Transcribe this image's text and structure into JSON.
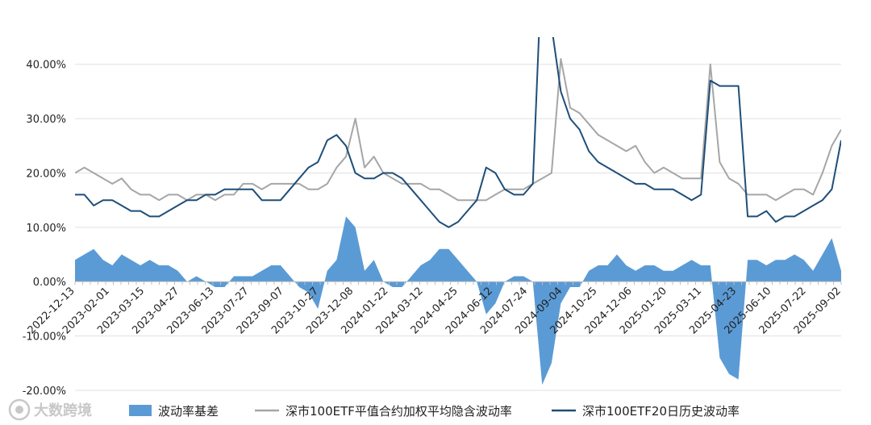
{
  "chart_data": {
    "type": "line",
    "title": "",
    "xlabel": "",
    "ylabel": "",
    "ylim": [
      -0.2,
      0.45
    ],
    "y_ticks": [
      -0.2,
      -0.1,
      0.0,
      0.1,
      0.2,
      0.3,
      0.4
    ],
    "y_tick_labels": [
      "-20.00%",
      "-10.00%",
      "0.00%",
      "10.00%",
      "20.00%",
      "30.00%",
      "40.00%"
    ],
    "x_tick_labels": [
      "2022-12-13",
      "2023-02-01",
      "2023-03-15",
      "2023-04-27",
      "2023-06-13",
      "2023-07-27",
      "2023-09-07",
      "2023-10-27",
      "2023-12-08",
      "2024-01-22",
      "2024-03-12",
      "2024-04-25",
      "2024-06-12",
      "2024-07-24",
      "2024-09-04",
      "2024-10-25",
      "2024-12-06",
      "2025-01-20",
      "2025-03-11",
      "2025-04-23",
      "2025-06-10",
      "2025-07-22",
      "2025-09-02"
    ],
    "grid": "horizontal",
    "legend_position": "bottom",
    "colors": {
      "basis": "#5b9bd5",
      "implied": "#a6a6a6",
      "historical": "#1f4e79",
      "grid": "#e0e0e0",
      "axis": "#bfbfbf"
    },
    "series": [
      {
        "name": "深市100ETF平值合约加权平均隐含波动率",
        "kind": "line",
        "values": [
          0.2,
          0.21,
          0.2,
          0.19,
          0.18,
          0.19,
          0.17,
          0.16,
          0.16,
          0.15,
          0.16,
          0.16,
          0.15,
          0.16,
          0.16,
          0.15,
          0.16,
          0.16,
          0.18,
          0.18,
          0.17,
          0.18,
          0.18,
          0.18,
          0.18,
          0.17,
          0.17,
          0.18,
          0.21,
          0.23,
          0.3,
          0.21,
          0.23,
          0.2,
          0.19,
          0.18,
          0.18,
          0.18,
          0.17,
          0.17,
          0.16,
          0.15,
          0.15,
          0.15,
          0.15,
          0.16,
          0.17,
          0.17,
          0.17,
          0.18,
          0.19,
          0.2,
          0.41,
          0.32,
          0.31,
          0.29,
          0.27,
          0.26,
          0.25,
          0.24,
          0.25,
          0.22,
          0.2,
          0.21,
          0.2,
          0.19,
          0.19,
          0.19,
          0.4,
          0.22,
          0.19,
          0.18,
          0.16,
          0.16,
          0.16,
          0.15,
          0.16,
          0.17,
          0.17,
          0.16,
          0.2,
          0.25,
          0.28
        ]
      },
      {
        "name": "深市100ETF20日历史波动率",
        "kind": "line",
        "values": [
          0.16,
          0.16,
          0.14,
          0.15,
          0.15,
          0.14,
          0.13,
          0.13,
          0.12,
          0.12,
          0.13,
          0.14,
          0.15,
          0.15,
          0.16,
          0.16,
          0.17,
          0.17,
          0.17,
          0.17,
          0.15,
          0.15,
          0.15,
          0.17,
          0.19,
          0.21,
          0.22,
          0.26,
          0.27,
          0.25,
          0.2,
          0.19,
          0.19,
          0.2,
          0.2,
          0.19,
          0.17,
          0.15,
          0.13,
          0.11,
          0.1,
          0.11,
          0.13,
          0.15,
          0.21,
          0.2,
          0.17,
          0.16,
          0.16,
          0.18,
          0.6,
          0.47,
          0.35,
          0.3,
          0.28,
          0.24,
          0.22,
          0.21,
          0.2,
          0.19,
          0.18,
          0.18,
          0.17,
          0.17,
          0.17,
          0.16,
          0.15,
          0.16,
          0.37,
          0.36,
          0.36,
          0.36,
          0.12,
          0.12,
          0.13,
          0.11,
          0.12,
          0.12,
          0.13,
          0.14,
          0.15,
          0.17,
          0.26
        ]
      },
      {
        "name": "波动率基差",
        "kind": "area",
        "values": [
          0.04,
          0.05,
          0.06,
          0.04,
          0.03,
          0.05,
          0.04,
          0.03,
          0.04,
          0.03,
          0.03,
          0.02,
          0.0,
          0.01,
          0.0,
          -0.01,
          -0.01,
          0.01,
          0.01,
          0.01,
          0.02,
          0.03,
          0.03,
          0.01,
          -0.01,
          -0.02,
          -0.05,
          0.02,
          0.04,
          0.12,
          0.1,
          0.02,
          0.04,
          0.0,
          -0.01,
          -0.01,
          0.01,
          0.03,
          0.04,
          0.06,
          0.06,
          0.04,
          0.02,
          0.0,
          -0.06,
          -0.04,
          0.0,
          0.01,
          0.01,
          0.0,
          -0.19,
          -0.15,
          -0.04,
          -0.01,
          -0.01,
          0.02,
          0.03,
          0.03,
          0.05,
          0.03,
          0.02,
          0.03,
          0.03,
          0.02,
          0.02,
          0.03,
          0.04,
          0.03,
          0.03,
          -0.14,
          -0.17,
          -0.18,
          0.04,
          0.04,
          0.03,
          0.04,
          0.04,
          0.05,
          0.04,
          0.02,
          0.05,
          0.08,
          0.02
        ]
      }
    ],
    "legend": [
      {
        "name": "波动率基差",
        "swatch": "area"
      },
      {
        "name": "深市100ETF平值合约加权平均隐含波动率",
        "swatch": "line-implied"
      },
      {
        "name": "深市100ETF20日历史波动率",
        "swatch": "line-historical"
      }
    ]
  },
  "watermark": {
    "text": "大数跨境",
    "icon": "camera-lens-icon"
  }
}
